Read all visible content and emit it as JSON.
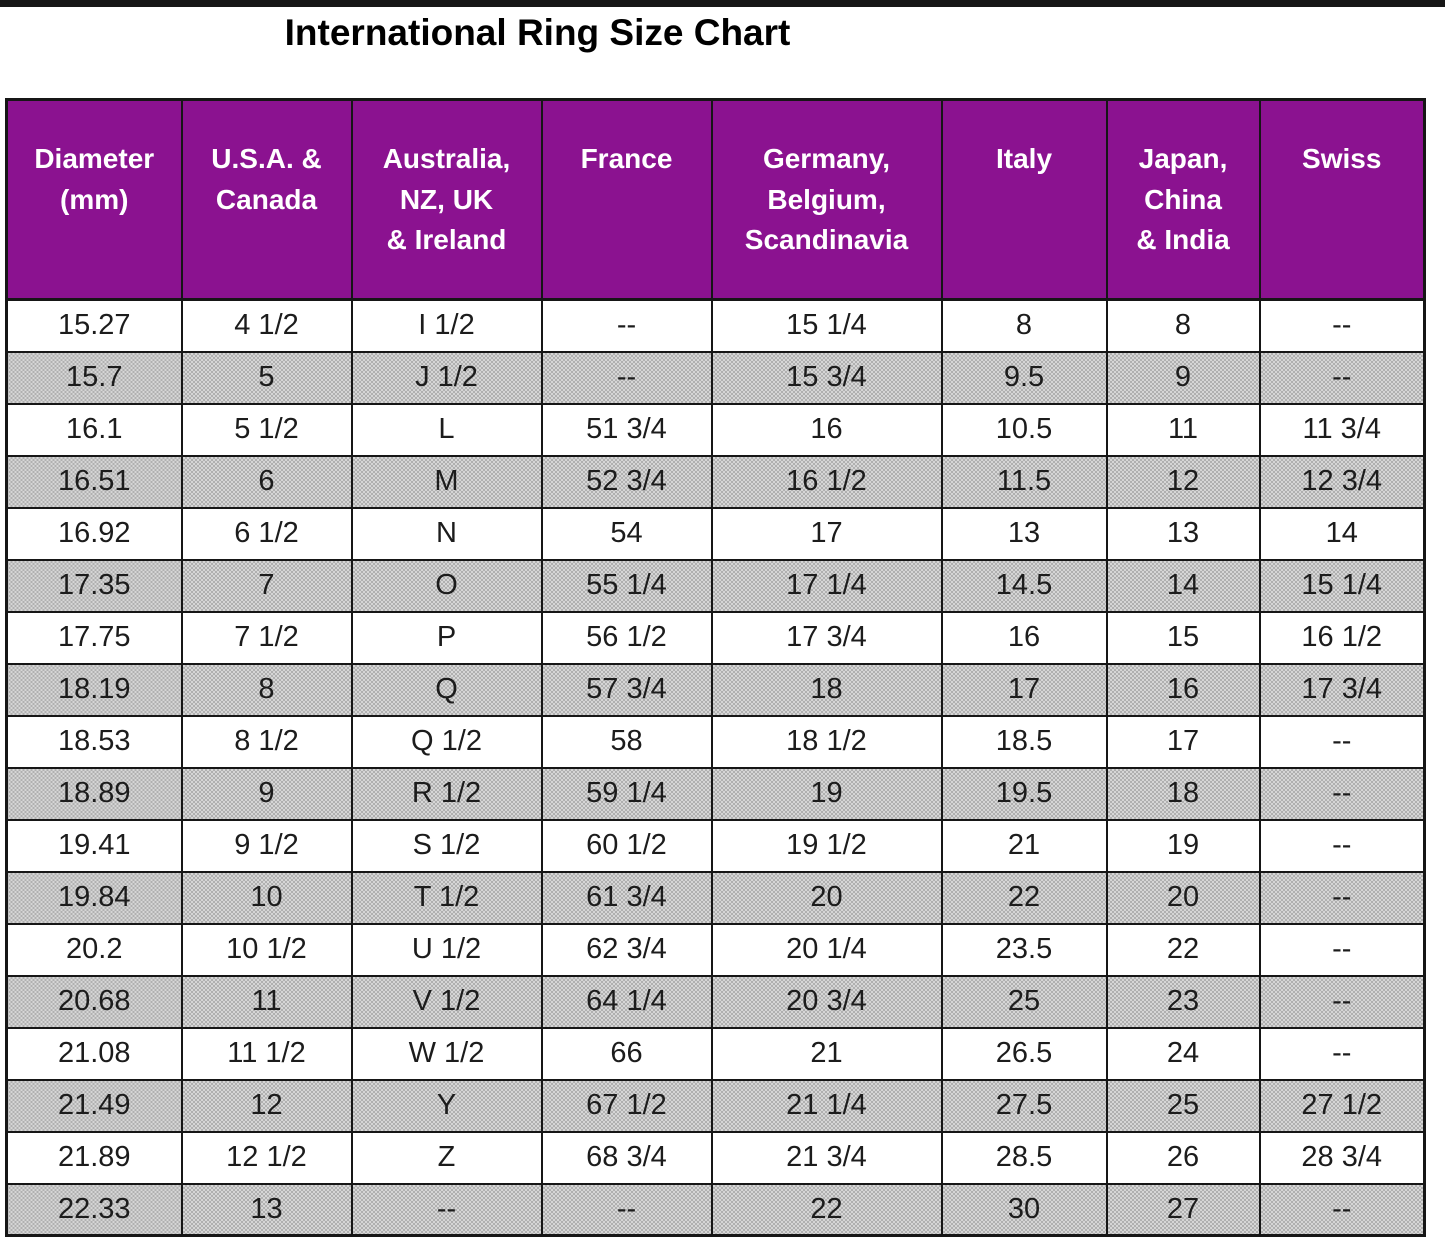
{
  "title": "International Ring Size Chart",
  "colors": {
    "page_bg": "#FFFFFF",
    "title_text": "#000000",
    "grid_border": "#161616",
    "header_bg": "#8B1290",
    "header_text": "#FFFFFF",
    "row_bg": "#FFFFFF",
    "row_alt_base": "#D6D6D6",
    "row_alt_dot": "#B0B0B0"
  },
  "chart_data": {
    "type": "table",
    "title": "International Ring Size Chart",
    "columns": [
      "Diameter\n(mm)",
      "U.S.A. &\nCanada",
      "Australia,\nNZ, UK\n& Ireland",
      "France",
      "Germany,\nBelgium,\nScandinavia",
      "Italy",
      "Japan,\nChina\n& India",
      "Swiss"
    ],
    "rows": [
      [
        "15.27",
        "4 1/2",
        "I 1/2",
        "--",
        "15 1/4",
        "8",
        "8",
        "--"
      ],
      [
        "15.7",
        "5",
        "J 1/2",
        "--",
        "15 3/4",
        "9.5",
        "9",
        "--"
      ],
      [
        "16.1",
        "5 1/2",
        "L",
        "51 3/4",
        "16",
        "10.5",
        "11",
        "11 3/4"
      ],
      [
        "16.51",
        "6",
        "M",
        "52 3/4",
        "16 1/2",
        "11.5",
        "12",
        "12 3/4"
      ],
      [
        "16.92",
        "6 1/2",
        "N",
        "54",
        "17",
        "13",
        "13",
        "14"
      ],
      [
        "17.35",
        "7",
        "O",
        "55 1/4",
        "17 1/4",
        "14.5",
        "14",
        "15 1/4"
      ],
      [
        "17.75",
        "7 1/2",
        "P",
        "56 1/2",
        "17 3/4",
        "16",
        "15",
        "16 1/2"
      ],
      [
        "18.19",
        "8",
        "Q",
        "57 3/4",
        "18",
        "17",
        "16",
        "17 3/4"
      ],
      [
        "18.53",
        "8 1/2",
        "Q 1/2",
        "58",
        "18 1/2",
        "18.5",
        "17",
        "--"
      ],
      [
        "18.89",
        "9",
        "R 1/2",
        "59 1/4",
        "19",
        "19.5",
        "18",
        "--"
      ],
      [
        "19.41",
        "9 1/2",
        "S 1/2",
        "60 1/2",
        "19 1/2",
        "21",
        "19",
        "--"
      ],
      [
        "19.84",
        "10",
        "T 1/2",
        "61 3/4",
        "20",
        "22",
        "20",
        "--"
      ],
      [
        "20.2",
        "10 1/2",
        "U 1/2",
        "62 3/4",
        "20 1/4",
        "23.5",
        "22",
        "--"
      ],
      [
        "20.68",
        "11",
        "V 1/2",
        "64 1/4",
        "20 3/4",
        "25",
        "23",
        "--"
      ],
      [
        "21.08",
        "11 1/2",
        "W 1/2",
        "66",
        "21",
        "26.5",
        "24",
        "--"
      ],
      [
        "21.49",
        "12",
        "Y",
        "67 1/2",
        "21 1/4",
        "27.5",
        "25",
        "27 1/2"
      ],
      [
        "21.89",
        "12 1/2",
        "Z",
        "68 3/4",
        "21 3/4",
        "28.5",
        "26",
        "28 3/4"
      ],
      [
        "22.33",
        "13",
        "--",
        "--",
        "22",
        "30",
        "27",
        "--"
      ]
    ],
    "layout": {
      "stripe_pattern": "alternating white and dithered gray rows, first data row white",
      "header_style": "purple background, white bold text"
    }
  }
}
